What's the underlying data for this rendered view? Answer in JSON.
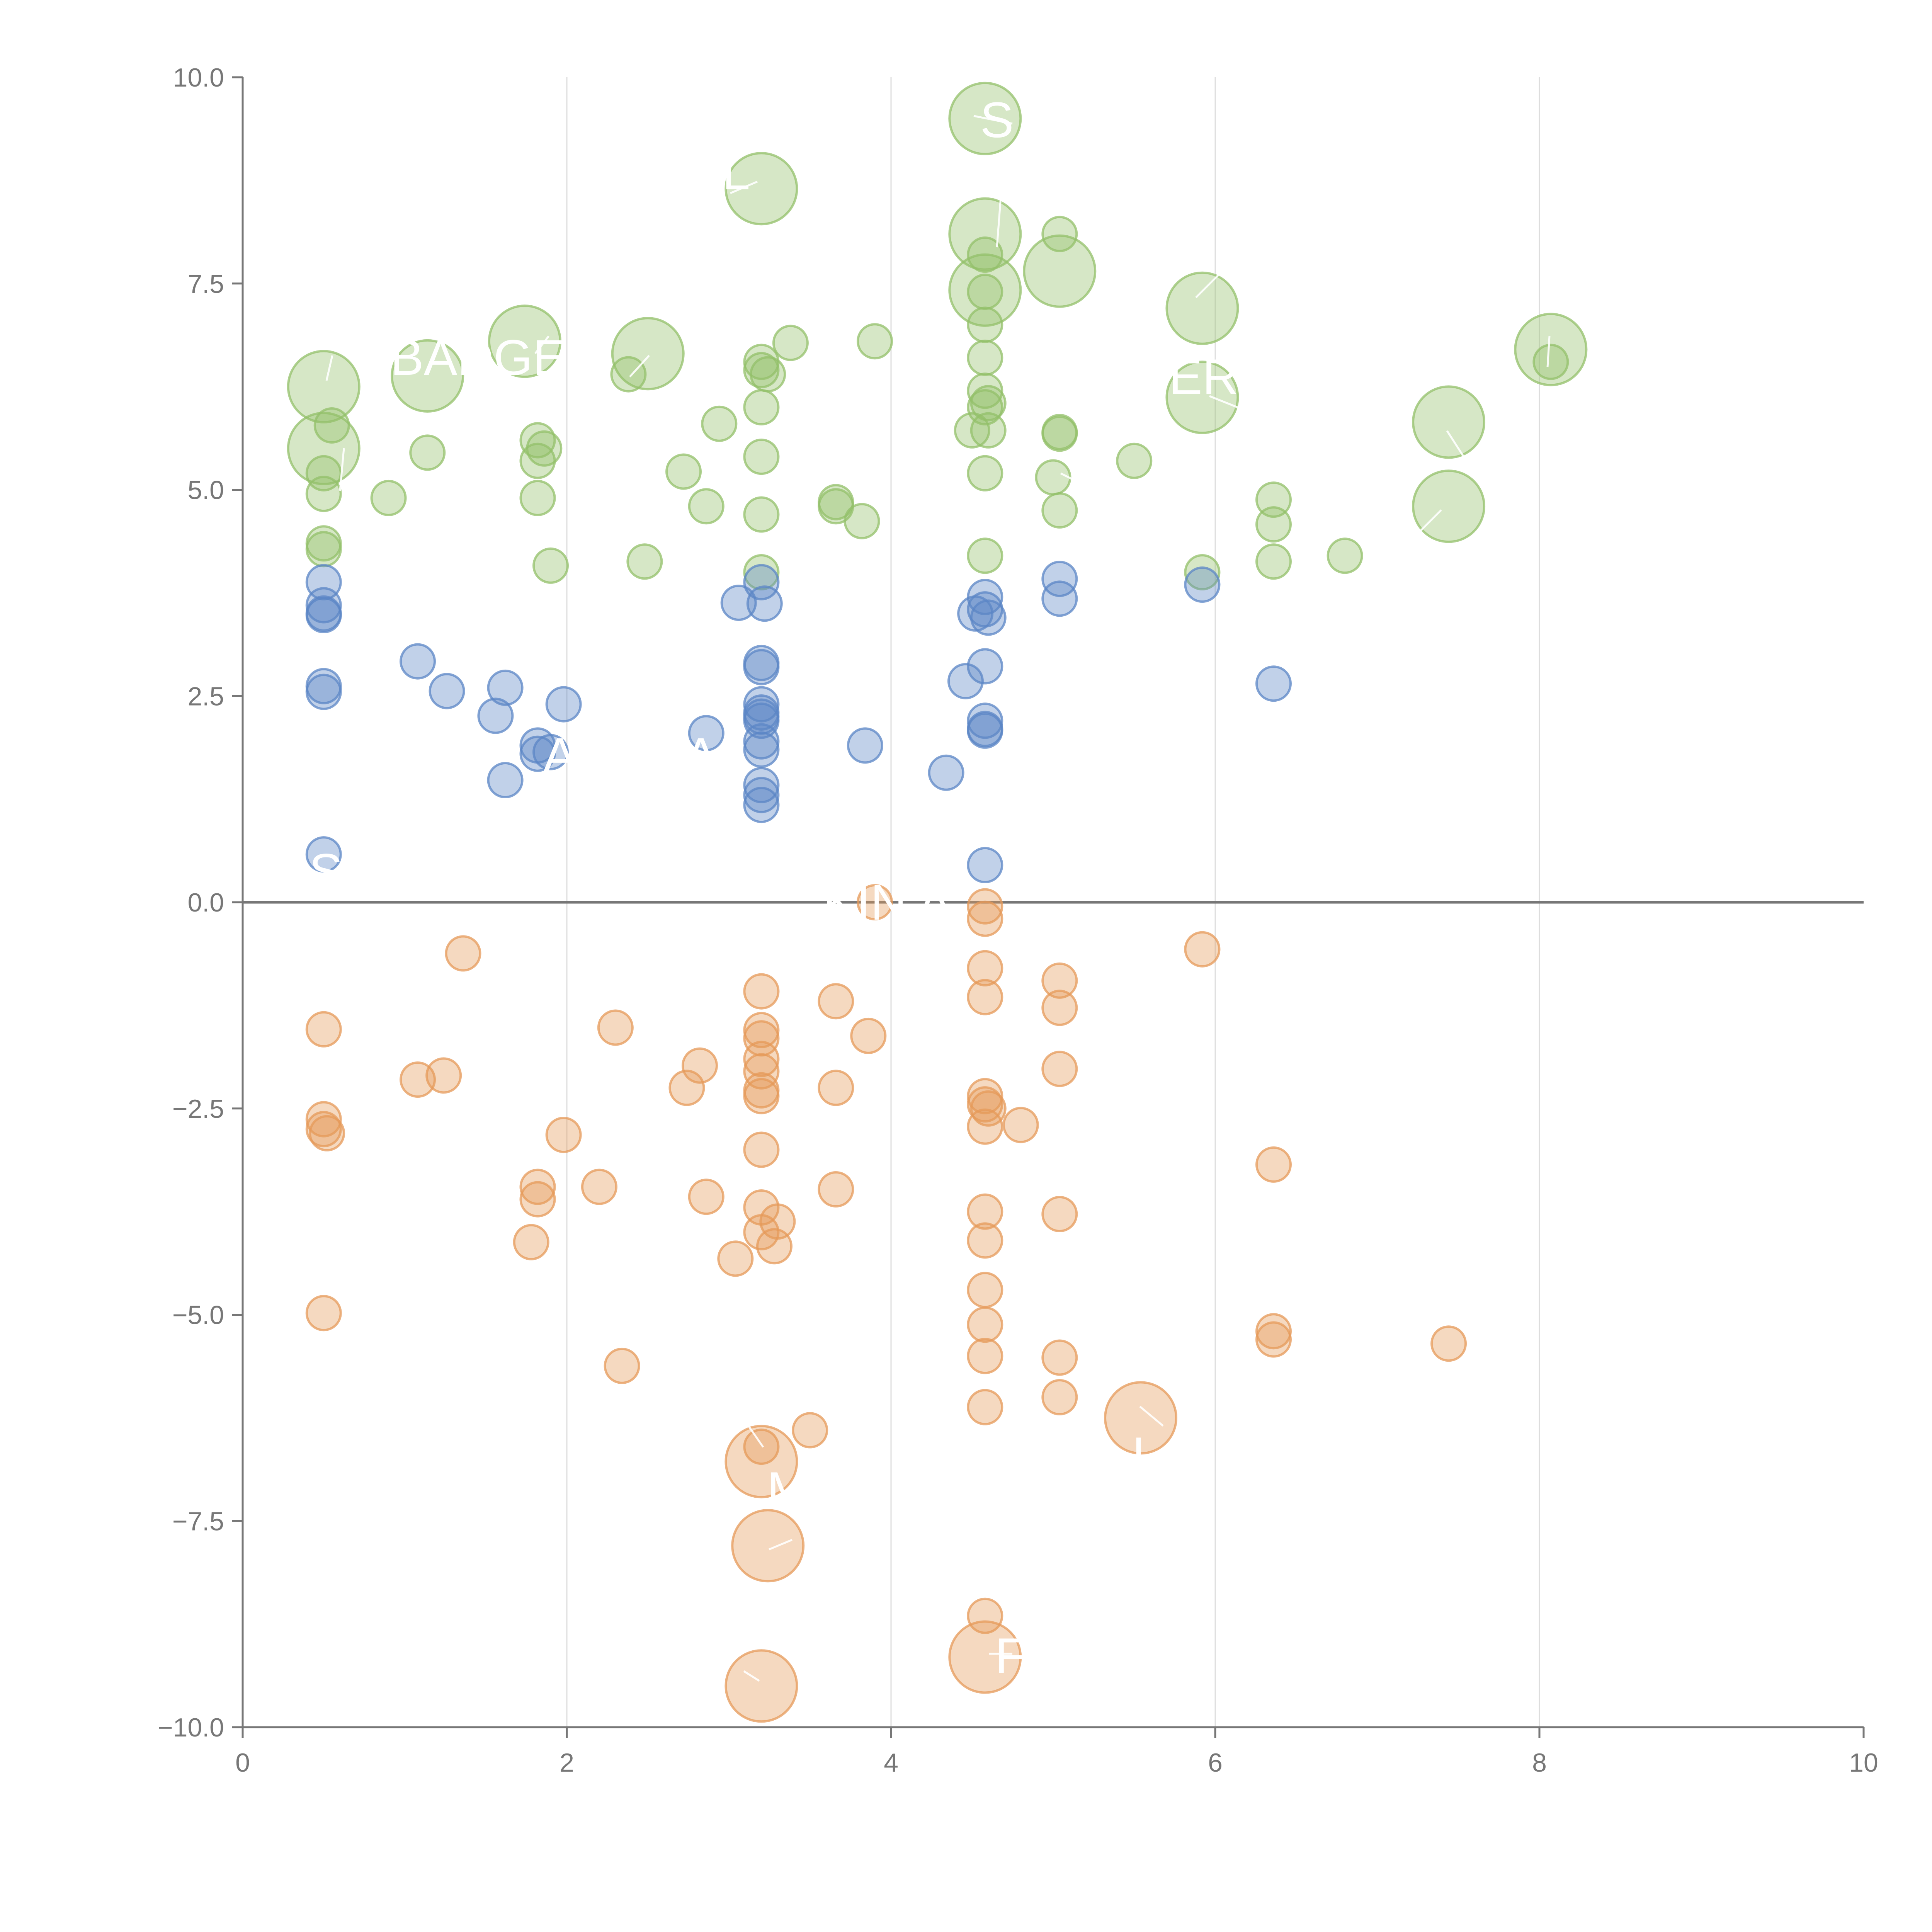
{
  "chart_data": {
    "type": "scatter",
    "title": "",
    "xlabel": "",
    "ylabel": "",
    "xlim": [
      0,
      10
    ],
    "ylim": [
      -10,
      10
    ],
    "x_ticks": [
      0,
      2,
      4,
      6,
      8,
      10
    ],
    "y_ticks": [
      10.0,
      7.5,
      5.0,
      2.5,
      0.0,
      -2.5,
      -5.0,
      -7.5,
      -10.0
    ],
    "x_tick_labels": [
      "0",
      "2",
      "4",
      "6",
      "8",
      "10"
    ],
    "y_tick_labels": [
      "10.0",
      "7.5",
      "5.0",
      "2.5",
      "0.0",
      "−2.5",
      "−5.0",
      "−7.5",
      "−10.0"
    ],
    "vertical_grid": true,
    "horizontal_grid": false,
    "zero_line": true,
    "legend": "none",
    "colors": {
      "green": "#93c06a",
      "blue": "#5b86c5",
      "orange": "#e59a5a",
      "axis": "#777777",
      "zero_line": "#777777",
      "grid": "#dddddd"
    },
    "series": [
      {
        "color_key": "green",
        "points": [
          [
            4.58,
            9.5,
            3
          ],
          [
            3.2,
            8.65,
            3
          ],
          [
            4.58,
            8.1,
            3
          ],
          [
            5.04,
            8.1,
            1
          ],
          [
            4.58,
            7.85,
            1
          ],
          [
            5.04,
            7.65,
            3
          ],
          [
            4.58,
            7.42,
            3
          ],
          [
            4.58,
            7.4,
            1
          ],
          [
            5.92,
            7.2,
            3
          ],
          [
            4.58,
            7.0,
            1
          ],
          [
            1.74,
            6.8,
            3
          ],
          [
            3.38,
            6.78,
            1
          ],
          [
            3.9,
            6.8,
            1
          ],
          [
            8.07,
            6.7,
            3
          ],
          [
            8.07,
            6.55,
            1
          ],
          [
            2.5,
            6.65,
            3
          ],
          [
            3.2,
            6.55,
            1
          ],
          [
            4.58,
            6.6,
            1
          ],
          [
            3.24,
            6.4,
            1
          ],
          [
            3.2,
            6.45,
            1
          ],
          [
            2.38,
            6.4,
            1
          ],
          [
            1.14,
            6.38,
            3
          ],
          [
            0.5,
            6.25,
            3
          ],
          [
            4.58,
            6.2,
            1
          ],
          [
            5.92,
            6.12,
            3
          ],
          [
            4.58,
            6.0,
            1
          ],
          [
            4.6,
            6.05,
            1
          ],
          [
            3.2,
            6.0,
            1
          ],
          [
            7.44,
            5.82,
            3
          ],
          [
            2.94,
            5.8,
            1
          ],
          [
            0.55,
            5.78,
            1
          ],
          [
            4.5,
            5.72,
            1
          ],
          [
            4.6,
            5.72,
            1
          ],
          [
            5.04,
            5.7,
            1
          ],
          [
            5.04,
            5.68,
            1
          ],
          [
            1.82,
            5.6,
            1
          ],
          [
            1.86,
            5.5,
            1
          ],
          [
            0.5,
            5.5,
            3
          ],
          [
            1.14,
            5.45,
            1
          ],
          [
            3.2,
            5.4,
            1
          ],
          [
            1.82,
            5.35,
            1
          ],
          [
            5.5,
            5.35,
            1
          ],
          [
            2.72,
            5.22,
            1
          ],
          [
            0.5,
            5.2,
            1
          ],
          [
            4.58,
            5.2,
            1
          ],
          [
            5.0,
            5.15,
            1
          ],
          [
            0.5,
            4.95,
            1
          ],
          [
            0.9,
            4.9,
            1
          ],
          [
            1.82,
            4.9,
            1
          ],
          [
            6.36,
            4.88,
            1
          ],
          [
            3.66,
            4.85,
            1
          ],
          [
            3.66,
            4.8,
            1
          ],
          [
            2.86,
            4.8,
            1
          ],
          [
            7.44,
            4.8,
            3
          ],
          [
            5.04,
            4.75,
            1
          ],
          [
            3.2,
            4.7,
            1
          ],
          [
            3.82,
            4.62,
            1
          ],
          [
            6.36,
            4.58,
            1
          ],
          [
            0.5,
            4.35,
            1
          ],
          [
            0.5,
            4.28,
            1
          ],
          [
            4.58,
            4.2,
            1
          ],
          [
            6.8,
            4.2,
            1
          ],
          [
            2.48,
            4.13,
            1
          ],
          [
            6.36,
            4.13,
            1
          ],
          [
            1.9,
            4.08,
            1
          ],
          [
            3.2,
            4.0,
            1
          ],
          [
            5.92,
            4.0,
            1
          ]
        ]
      },
      {
        "color_key": "blue",
        "points": [
          [
            0.5,
            3.88,
            1
          ],
          [
            3.2,
            3.88,
            1
          ],
          [
            5.04,
            3.92,
            1
          ],
          [
            5.92,
            3.85,
            1
          ],
          [
            4.58,
            3.7,
            1
          ],
          [
            5.04,
            3.68,
            1
          ],
          [
            3.06,
            3.63,
            1
          ],
          [
            3.22,
            3.62,
            1
          ],
          [
            0.5,
            3.6,
            1
          ],
          [
            0.5,
            3.5,
            1
          ],
          [
            4.58,
            3.55,
            1
          ],
          [
            4.52,
            3.5,
            1
          ],
          [
            4.6,
            3.45,
            1
          ],
          [
            0.5,
            3.48,
            1
          ],
          [
            1.08,
            2.92,
            1
          ],
          [
            3.2,
            2.9,
            1
          ],
          [
            3.2,
            2.85,
            1
          ],
          [
            4.58,
            2.86,
            1
          ],
          [
            4.46,
            2.68,
            1
          ],
          [
            6.36,
            2.65,
            1
          ],
          [
            0.5,
            2.62,
            1
          ],
          [
            1.62,
            2.6,
            1
          ],
          [
            1.26,
            2.56,
            1
          ],
          [
            0.5,
            2.55,
            1
          ],
          [
            1.98,
            2.4,
            1
          ],
          [
            3.2,
            2.4,
            1
          ],
          [
            3.2,
            2.3,
            1
          ],
          [
            3.2,
            2.25,
            1
          ],
          [
            1.56,
            2.26,
            1
          ],
          [
            3.2,
            2.2,
            1
          ],
          [
            4.58,
            2.2,
            1
          ],
          [
            4.58,
            2.1,
            1
          ],
          [
            4.58,
            2.08,
            1
          ],
          [
            2.86,
            2.05,
            1
          ],
          [
            3.2,
            1.95,
            1
          ],
          [
            3.84,
            1.9,
            1
          ],
          [
            1.82,
            1.9,
            1
          ],
          [
            3.2,
            1.85,
            1
          ],
          [
            1.82,
            1.8,
            1
          ],
          [
            1.9,
            1.82,
            1
          ],
          [
            4.34,
            1.57,
            1
          ],
          [
            1.62,
            1.48,
            1
          ],
          [
            3.2,
            1.42,
            1
          ],
          [
            3.2,
            1.3,
            1
          ],
          [
            3.2,
            1.18,
            1
          ],
          [
            0.5,
            0.58,
            1
          ],
          [
            4.58,
            0.45,
            1
          ]
        ]
      },
      {
        "color_key": "orange",
        "points": [
          [
            3.9,
            0.0,
            1
          ],
          [
            4.58,
            -0.05,
            1
          ],
          [
            4.58,
            -0.2,
            1
          ],
          [
            1.36,
            -0.62,
            1
          ],
          [
            5.92,
            -0.57,
            1
          ],
          [
            4.58,
            -0.8,
            1
          ],
          [
            5.04,
            -0.95,
            1
          ],
          [
            3.2,
            -1.08,
            1
          ],
          [
            4.58,
            -1.15,
            1
          ],
          [
            3.66,
            -1.2,
            1
          ],
          [
            5.04,
            -1.28,
            1
          ],
          [
            2.3,
            -1.52,
            1
          ],
          [
            0.5,
            -1.54,
            1
          ],
          [
            3.2,
            -1.55,
            1
          ],
          [
            3.2,
            -1.65,
            1
          ],
          [
            3.86,
            -1.62,
            1
          ],
          [
            3.2,
            -1.9,
            1
          ],
          [
            2.82,
            -1.98,
            1
          ],
          [
            5.04,
            -2.02,
            1
          ],
          [
            3.2,
            -2.05,
            1
          ],
          [
            1.08,
            -2.15,
            1
          ],
          [
            1.24,
            -2.1,
            1
          ],
          [
            2.74,
            -2.25,
            1
          ],
          [
            3.66,
            -2.25,
            1
          ],
          [
            3.2,
            -2.28,
            1
          ],
          [
            3.2,
            -2.35,
            1
          ],
          [
            4.58,
            -2.35,
            1
          ],
          [
            4.58,
            -2.45,
            1
          ],
          [
            4.6,
            -2.5,
            1
          ],
          [
            0.5,
            -2.63,
            1
          ],
          [
            4.8,
            -2.7,
            1
          ],
          [
            4.58,
            -2.72,
            1
          ],
          [
            0.5,
            -2.75,
            1
          ],
          [
            0.52,
            -2.8,
            1
          ],
          [
            1.98,
            -2.82,
            1
          ],
          [
            3.2,
            -3.0,
            1
          ],
          [
            6.36,
            -3.18,
            1
          ],
          [
            1.82,
            -3.45,
            1
          ],
          [
            2.2,
            -3.45,
            1
          ],
          [
            3.66,
            -3.48,
            1
          ],
          [
            1.82,
            -3.6,
            1
          ],
          [
            2.86,
            -3.57,
            1
          ],
          [
            3.2,
            -3.7,
            1
          ],
          [
            4.58,
            -3.75,
            1
          ],
          [
            5.04,
            -3.78,
            1
          ],
          [
            3.3,
            -3.87,
            1
          ],
          [
            3.2,
            -4.0,
            1
          ],
          [
            4.58,
            -4.1,
            1
          ],
          [
            1.78,
            -4.12,
            1
          ],
          [
            3.28,
            -4.17,
            1
          ],
          [
            3.04,
            -4.32,
            1
          ],
          [
            4.58,
            -4.7,
            1
          ],
          [
            0.5,
            -4.98,
            1
          ],
          [
            4.58,
            -5.12,
            1
          ],
          [
            6.36,
            -5.2,
            1
          ],
          [
            6.36,
            -5.3,
            1
          ],
          [
            7.44,
            -5.35,
            1
          ],
          [
            4.58,
            -5.5,
            1
          ],
          [
            5.04,
            -5.52,
            1
          ],
          [
            2.34,
            -5.62,
            1
          ],
          [
            5.04,
            -6.0,
            1
          ],
          [
            4.58,
            -6.12,
            1
          ],
          [
            5.54,
            -6.25,
            3
          ],
          [
            3.5,
            -6.4,
            1
          ],
          [
            3.2,
            -6.6,
            1
          ],
          [
            3.2,
            -6.78,
            3
          ],
          [
            3.24,
            -7.8,
            3
          ],
          [
            4.58,
            -8.65,
            1
          ],
          [
            4.58,
            -9.15,
            3
          ],
          [
            3.2,
            -9.5,
            3
          ]
        ]
      }
    ],
    "labels": [
      "S",
      "L",
      "BADGER",
      "ER",
      "A",
      "A",
      "S",
      "KIN A",
      "M",
      "L",
      "F"
    ]
  }
}
